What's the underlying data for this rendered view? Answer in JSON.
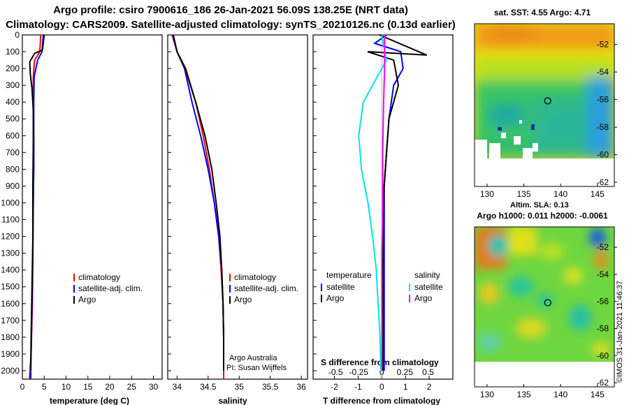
{
  "header": {
    "title_line1": "Argo profile: csiro 7900616_186 26-Jan-2021 56.09S 138.25E (NRT data)",
    "title_line2": "Climatology: CARS2009. Satellite-adjusted climatology: synTS_20210126.nc (0.13d earlier)"
  },
  "colors": {
    "climatology": "#ff0000",
    "satellite": "#0000ff",
    "argo": "#000000",
    "satellite_salinity": "#00e5e5",
    "argo_salinity": "#ff00ff"
  },
  "chart_data": [
    {
      "type": "line",
      "panel": "temperature",
      "xlabel": "temperature (deg C)",
      "ylabel": "",
      "xlim": [
        0,
        32
      ],
      "ylim": [
        2050,
        0
      ],
      "x_ticks": [
        "0",
        "5",
        "10",
        "15",
        "20",
        "25",
        "30"
      ],
      "y_ticks": [
        "0",
        "100",
        "200",
        "300",
        "400",
        "500",
        "600",
        "700",
        "800",
        "900",
        "1000",
        "1100",
        "1200",
        "1300",
        "1400",
        "1500",
        "1600",
        "1700",
        "1800",
        "1900",
        "2000"
      ],
      "legend": [
        "climatology",
        "satellite-adj. clim.",
        "Argo"
      ],
      "series": [
        {
          "name": "climatology",
          "x": [
            4.2,
            4.0,
            2.8,
            2.5,
            2.5,
            2.6,
            2.6,
            2.5,
            2.4,
            2.3,
            2.0,
            1.6
          ],
          "y": [
            0,
            100,
            150,
            250,
            400,
            600,
            800,
            1000,
            1300,
            1600,
            1900,
            2050
          ]
        },
        {
          "name": "satellite-adj. clim.",
          "x": [
            4.8,
            4.5,
            3.5,
            2.7,
            2.6,
            2.6,
            2.6,
            2.5,
            2.4,
            2.2,
            2.0,
            1.9
          ],
          "y": [
            0,
            100,
            150,
            250,
            400,
            600,
            800,
            1000,
            1300,
            1600,
            1900,
            2050
          ]
        },
        {
          "name": "Argo",
          "x": [
            5.0,
            4.6,
            2.8,
            1.7,
            1.8,
            2.2,
            2.5,
            2.5,
            2.4,
            2.4,
            2.2,
            2.0,
            1.9
          ],
          "y": [
            0,
            90,
            110,
            160,
            230,
            320,
            450,
            650,
            900,
            1200,
            1500,
            1800,
            2000
          ]
        }
      ]
    },
    {
      "type": "line",
      "panel": "salinity",
      "xlabel": "salinity",
      "xlim": [
        33.85,
        36.1
      ],
      "ylim": [
        2050,
        0
      ],
      "x_ticks": [
        "34",
        "34.5",
        "35",
        "35.5",
        "36"
      ],
      "legend": [
        "climatology",
        "satellite-adj. clim.",
        "Argo"
      ],
      "annotation": [
        "Argo Australia",
        "PI: Susan Wijffels"
      ],
      "series": [
        {
          "name": "climatology",
          "x": [
            33.92,
            34.0,
            34.14,
            34.3,
            34.42,
            34.52,
            34.6,
            34.67,
            34.71,
            34.74,
            34.75,
            34.75
          ],
          "y": [
            0,
            100,
            200,
            400,
            600,
            800,
            1000,
            1200,
            1400,
            1600,
            1800,
            2050
          ]
        },
        {
          "name": "satellite-adj. clim.",
          "x": [
            33.93,
            34.0,
            34.12,
            34.24,
            34.38,
            34.5,
            34.6,
            34.67,
            34.72,
            34.74,
            34.75,
            34.75
          ],
          "y": [
            0,
            100,
            200,
            400,
            600,
            800,
            1000,
            1200,
            1400,
            1600,
            1800,
            2000
          ]
        },
        {
          "name": "Argo",
          "x": [
            33.94,
            34.0,
            34.13,
            34.3,
            34.45,
            34.56,
            34.63,
            34.69,
            34.72,
            34.74,
            34.75,
            34.75
          ],
          "y": [
            0,
            100,
            200,
            400,
            600,
            800,
            1000,
            1200,
            1400,
            1600,
            1800,
            2000
          ]
        }
      ]
    },
    {
      "type": "line",
      "panel": "difference",
      "xlabel": "T difference from climatology",
      "secondary_label": "S difference from climatology",
      "xlim": [
        -2.9,
        3.0
      ],
      "ylim": [
        2050,
        0
      ],
      "x_ticks": [
        "-2",
        "-1",
        "0",
        "1",
        "2"
      ],
      "x_ticks_secondary": [
        "-0.5",
        "-0.25",
        "0",
        "0.25",
        "0.5"
      ],
      "legend_temperature_title": "temperature",
      "legend_salinity_title": "salinity",
      "legend_temperature": [
        "satellite",
        "Argo"
      ],
      "legend_salinity": [
        "satellite",
        "Argo"
      ],
      "series": [
        {
          "name": "temperature satellite",
          "x": [
            0.2,
            -0.3,
            0.8,
            0.9,
            0.5,
            0.3,
            0.2,
            0.1,
            0.1,
            0.1,
            0.1,
            0.1
          ],
          "y": [
            0,
            50,
            100,
            200,
            300,
            500,
            700,
            900,
            1200,
            1500,
            1800,
            2000
          ]
        },
        {
          "name": "temperature Argo",
          "x": [
            -0.1,
            1.9,
            -0.6,
            0.5,
            0.7,
            0.3,
            0.2,
            0.1,
            0.05,
            0.05,
            0.05,
            0.05
          ],
          "y": [
            0,
            120,
            100,
            150,
            300,
            500,
            700,
            900,
            1200,
            1500,
            1800,
            2000
          ]
        },
        {
          "name": "salinity satellite",
          "x": [
            0.0,
            0.05,
            -0.1,
            -0.2,
            -0.25,
            -0.22,
            -0.15,
            -0.1,
            -0.06,
            -0.04,
            -0.02,
            -0.01
          ],
          "y": [
            0,
            150,
            300,
            400,
            600,
            800,
            1000,
            1200,
            1400,
            1600,
            1800,
            2000
          ]
        },
        {
          "name": "salinity Argo",
          "x": [
            0.03,
            0.03,
            0.02,
            0.01,
            0.01,
            0.0,
            0.0,
            0.0,
            0.0
          ],
          "y": [
            0,
            200,
            400,
            700,
            1000,
            1300,
            1600,
            1800,
            2000
          ]
        }
      ]
    },
    {
      "type": "heatmap",
      "panel": "sst_map",
      "title": "sat. SST: 4.55 Argo: 4.71",
      "x_ticks": [
        "130",
        "135",
        "140",
        "145"
      ],
      "y_ticks": [
        "-52",
        "-54",
        "-56",
        "-58",
        "-60",
        "-62"
      ],
      "xlim": [
        128.3,
        147.3
      ],
      "ylim": [
        -62.3,
        -50.5
      ],
      "marker": {
        "lon": 138.25,
        "lat": -56.09
      }
    },
    {
      "type": "heatmap",
      "panel": "sla_map",
      "title_line1": "Altim. SLA: 0.13",
      "title_line2": "Argo h1000: 0.011 h2000: -0.0061",
      "x_ticks": [
        "130",
        "135",
        "140",
        "145"
      ],
      "y_ticks": [
        "-52",
        "-54",
        "-56",
        "-58",
        "-60",
        "-62"
      ],
      "xlim": [
        128.3,
        147.3
      ],
      "ylim": [
        -62.3,
        -50.5
      ],
      "marker": {
        "lon": 138.25,
        "lat": -56.09
      }
    }
  ],
  "credit": "©IMOS 31-Jan-2021 11:46:37"
}
